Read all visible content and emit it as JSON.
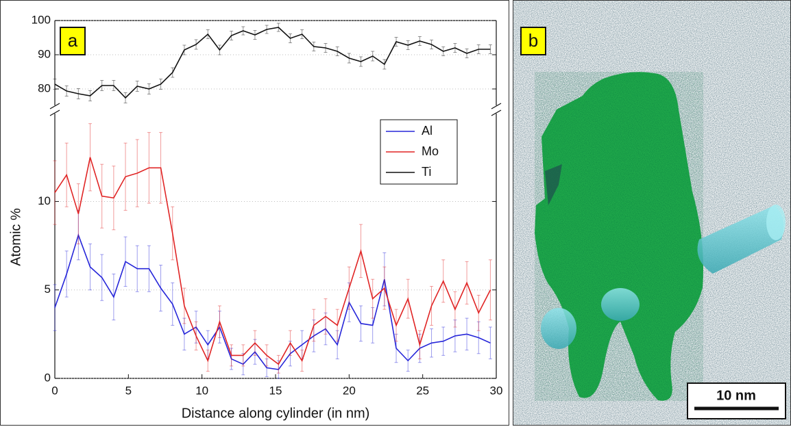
{
  "chart_data": {
    "type": "line",
    "annotations": [
      "a"
    ],
    "x_label": "Distance along cylinder (in nm)",
    "y_label": "Atomic %",
    "x": [
      0,
      0.8,
      1.6,
      2.4,
      3.2,
      4.0,
      4.8,
      5.6,
      6.4,
      7.2,
      8.0,
      8.8,
      9.6,
      10.4,
      11.2,
      12.0,
      12.8,
      13.6,
      14.4,
      15.2,
      16.0,
      16.8,
      17.6,
      18.4,
      19.2,
      20.0,
      20.8,
      21.6,
      22.4,
      23.2,
      24.0,
      24.8,
      25.6,
      26.4,
      27.2,
      28.0,
      28.8,
      29.6
    ],
    "xlim": [
      0,
      30
    ],
    "xticks": [
      0,
      5,
      10,
      15,
      20,
      25,
      30
    ],
    "ylim": [
      0,
      15.2
    ],
    "yticks": [
      0,
      5,
      10
    ],
    "y2lim": [
      74,
      100
    ],
    "y2ticks": [
      80,
      90,
      100
    ],
    "grid": true,
    "legend": "upper right",
    "series": [
      {
        "name": "Al",
        "color": "#2626d9",
        "values": [
          4.0,
          5.9,
          8.1,
          6.3,
          5.7,
          4.6,
          6.6,
          6.2,
          6.2,
          5.1,
          4.2,
          2.5,
          2.9,
          1.9,
          2.9,
          1.1,
          0.8,
          1.5,
          0.6,
          0.5,
          1.4,
          1.9,
          2.4,
          2.8,
          1.9,
          4.3,
          3.1,
          3.0,
          5.6,
          1.7,
          1.0,
          1.7,
          2.0,
          2.1,
          2.4,
          2.5,
          2.3,
          2.0
        ],
        "errors": [
          1.3,
          1.3,
          1.4,
          1.3,
          1.3,
          1.3,
          1.4,
          1.3,
          1.3,
          1.3,
          1.2,
          0.9,
          0.9,
          0.8,
          0.9,
          0.6,
          0.6,
          0.7,
          0.5,
          0.5,
          0.7,
          0.8,
          0.9,
          0.9,
          0.8,
          1.1,
          1.0,
          1.0,
          1.5,
          0.8,
          0.6,
          0.8,
          0.8,
          0.8,
          0.9,
          0.9,
          0.9,
          0.9
        ]
      },
      {
        "name": "Mo",
        "color": "#e02424",
        "values": [
          10.5,
          11.5,
          9.3,
          12.5,
          10.3,
          10.2,
          11.4,
          11.6,
          11.9,
          11.9,
          8.2,
          4.1,
          2.4,
          1.0,
          3.2,
          1.3,
          1.3,
          2.0,
          1.3,
          0.8,
          2.0,
          1.0,
          3.0,
          3.5,
          3.0,
          5.1,
          7.2,
          4.5,
          5.1,
          3.0,
          4.5,
          1.9,
          4.1,
          5.5,
          3.9,
          5.4,
          3.7,
          5.0
        ],
        "errors": [
          1.8,
          1.8,
          1.7,
          1.9,
          1.8,
          1.8,
          1.9,
          1.9,
          2.0,
          2.0,
          1.5,
          1.0,
          0.8,
          0.6,
          0.9,
          0.6,
          0.6,
          0.7,
          0.6,
          0.5,
          0.7,
          0.6,
          0.9,
          1.0,
          0.9,
          1.2,
          1.5,
          1.1,
          1.2,
          0.9,
          1.1,
          0.8,
          1.1,
          1.2,
          1.0,
          1.2,
          1.0,
          1.7
        ]
      },
      {
        "name": "Ti",
        "color": "#111111",
        "axis": "y2",
        "values": [
          81.4,
          79.4,
          78.6,
          78.0,
          81.0,
          81.0,
          77.4,
          80.8,
          80.0,
          81.4,
          84.8,
          91.4,
          93.0,
          96.0,
          91.4,
          95.6,
          97.0,
          95.8,
          97.4,
          98.0,
          94.8,
          96.0,
          92.4,
          92.0,
          91.0,
          89.0,
          88.0,
          89.6,
          87.2,
          93.8,
          92.8,
          94.0,
          93.0,
          91.0,
          92.0,
          90.4,
          91.6,
          91.6
        ],
        "errors": [
          1.5,
          1.5,
          1.5,
          1.5,
          1.5,
          1.5,
          1.5,
          1.5,
          1.5,
          1.5,
          1.4,
          1.4,
          1.4,
          1.3,
          1.4,
          1.3,
          1.2,
          1.3,
          1.2,
          1.2,
          1.3,
          1.3,
          1.3,
          1.3,
          1.3,
          1.4,
          1.4,
          1.4,
          1.4,
          1.3,
          1.3,
          1.3,
          1.3,
          1.3,
          1.3,
          1.3,
          1.3,
          1.3
        ]
      }
    ]
  },
  "panel_b": {
    "label": "b",
    "scale_bar": "10 nm"
  }
}
